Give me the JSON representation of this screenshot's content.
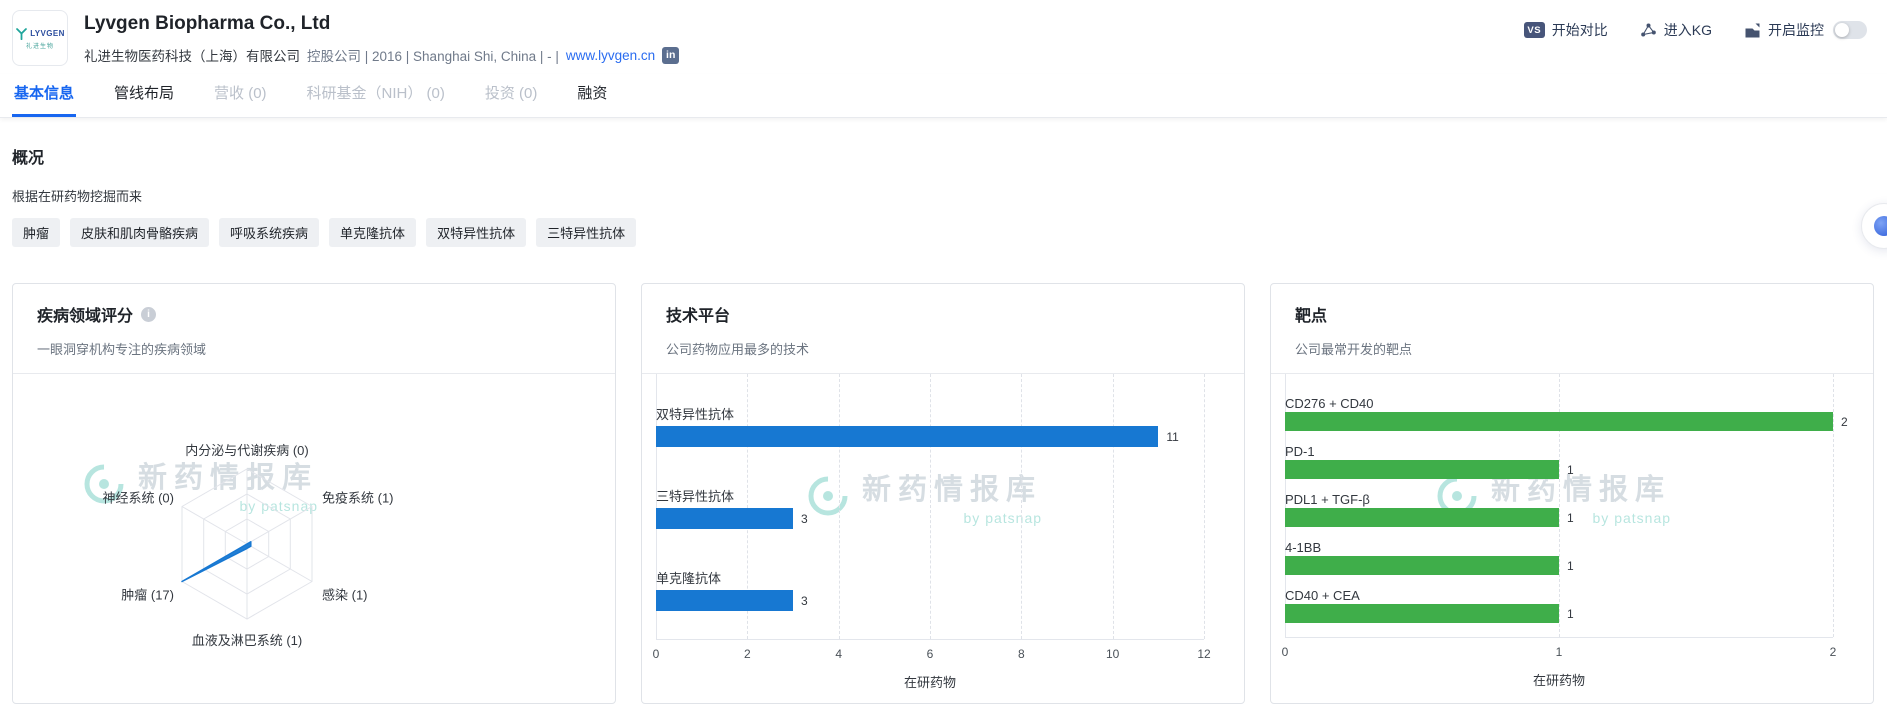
{
  "header": {
    "logo": {
      "brand": "LYVGEN",
      "brand_sub": "礼进生物"
    },
    "title": "Lyvgen Biopharma Co., Ltd",
    "company_cn": "礼进生物医药科技（上海）有限公司",
    "meta": "控股公司 | 2016 | Shanghai Shi, China | - |",
    "website": "www.lyvgen.cn",
    "linkedin_label": "in",
    "actions": {
      "vs_badge": "VS",
      "compare": "开始对比",
      "kg": "进入KG",
      "monitor": "开启监控",
      "monitor_toggle_state": "off"
    }
  },
  "tabs": [
    {
      "label": "基本信息",
      "state": "active"
    },
    {
      "label": "管线布局",
      "state": "normal"
    },
    {
      "label": "营收 (0)",
      "state": "disabled"
    },
    {
      "label": "科研基金（NIH） (0)",
      "state": "disabled"
    },
    {
      "label": "投资 (0)",
      "state": "disabled"
    },
    {
      "label": "融资",
      "state": "normal"
    }
  ],
  "overview": {
    "heading": "概况",
    "description": "根据在研药物挖掘而来",
    "tags": [
      "肿瘤",
      "皮肤和肌肉骨骼疾病",
      "呼吸系统疾病",
      "单克隆抗体",
      "双特异性抗体",
      "三特异性抗体"
    ]
  },
  "cards": [
    {
      "title": "疾病领域评分",
      "subtitle": "一眼洞穿机构专注的疾病领域"
    },
    {
      "title": "技术平台",
      "subtitle": "公司药物应用最多的技术"
    },
    {
      "title": "靶点",
      "subtitle": "公司最常开发的靶点"
    }
  ],
  "watermark": {
    "title": "新药情报库",
    "byline": "by patsnap"
  },
  "colors": {
    "accent_blue": "#1766f0",
    "bar_blue": "#1778d2",
    "bar_green": "#3fae4a",
    "link_blue": "#2a6cf0"
  },
  "chart_data": [
    {
      "type": "radar",
      "title": "疾病领域评分",
      "max": 17,
      "levels": 3,
      "color": "#1778d2",
      "axes": [
        {
          "label": "内分泌与代谢疾病",
          "value": 0
        },
        {
          "label": "免疫系统",
          "value": 1
        },
        {
          "label": "感染",
          "value": 1
        },
        {
          "label": "血液及淋巴系统",
          "value": 1
        },
        {
          "label": "肿瘤",
          "value": 17
        },
        {
          "label": "神经系统",
          "value": 0
        }
      ]
    },
    {
      "type": "bar",
      "title": "技术平台",
      "orientation": "horizontal",
      "categories": [
        "双特异性抗体",
        "三特异性抗体",
        "单克隆抗体"
      ],
      "values": [
        11,
        3,
        3
      ],
      "xticks": [
        0,
        2,
        4,
        6,
        8,
        10,
        12
      ],
      "xlim": [
        0,
        12
      ],
      "xlabel": "在研药物",
      "color": "#1778d2",
      "grid": "dashed-vertical"
    },
    {
      "type": "bar",
      "title": "靶点",
      "orientation": "horizontal",
      "categories": [
        "CD276 + CD40",
        "PD-1",
        "PDL1 + TGF-β",
        "4-1BB",
        "CD40 + CEA"
      ],
      "values": [
        2,
        1,
        1,
        1,
        1
      ],
      "xticks": [
        0,
        1,
        2
      ],
      "xlim": [
        0,
        2
      ],
      "xlabel": "在研药物",
      "color": "#3fae4a",
      "grid": "dashed-vertical"
    }
  ]
}
